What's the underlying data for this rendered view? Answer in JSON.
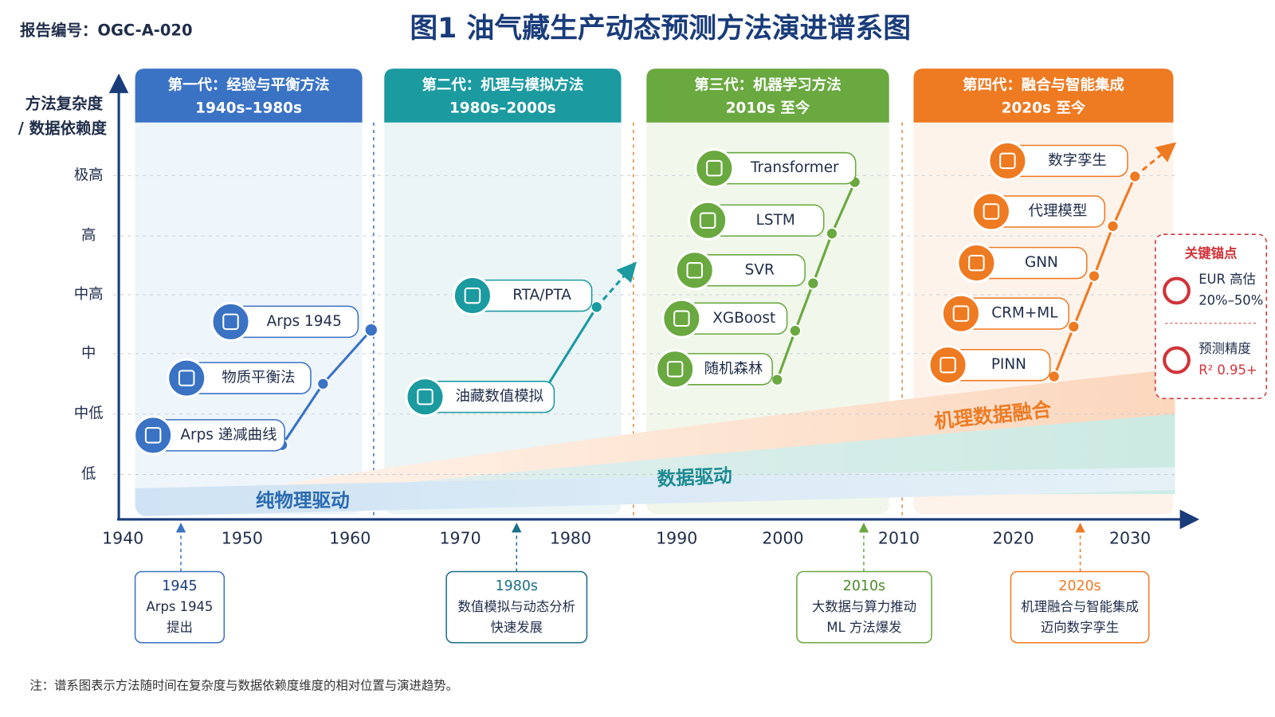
{
  "header": {
    "report_id": "报告编号：OGC-A-020",
    "title": "图1  油气藏生产动态预测方法演进谱系图"
  },
  "y_axis": {
    "title": [
      "方法复杂度",
      "/ 数据依赖度"
    ],
    "levels": [
      "极高",
      "高",
      "中高",
      "中",
      "中低",
      "低"
    ]
  },
  "x_axis": {
    "ticks": [
      "1940",
      "1950",
      "1960",
      "1970",
      "1980",
      "1990",
      "2000",
      "2010",
      "2020",
      "2030"
    ]
  },
  "generations": [
    {
      "title": "第一代：经验与平衡方法",
      "period": "1940s–1980s",
      "methods": [
        "Arps 递减曲线",
        "物质平衡法",
        "Arps 1945"
      ]
    },
    {
      "title": "第二代：机理与模拟方法",
      "period": "1980s–2000s",
      "methods": [
        "油藏数值模拟",
        "RTA/PTA"
      ]
    },
    {
      "title": "第三代：机器学习方法",
      "period": "2010s 至今",
      "methods": [
        "随机森林",
        "XGBoost",
        "SVR",
        "LSTM",
        "Transformer"
      ]
    },
    {
      "title": "第四代：融合与智能集成",
      "period": "2020s 至今",
      "methods": [
        "PINN",
        "CRM+ML",
        "GNN",
        "代理模型",
        "数字孪生"
      ]
    }
  ],
  "bands": [
    "纯物理驱动",
    "数据驱动",
    "机理数据融合"
  ],
  "key_anchors": {
    "title": "关键锚点",
    "items": [
      {
        "label": "EUR 高估",
        "value": "20%–50%"
      },
      {
        "label": "预测精度",
        "value": "R² 0.95+"
      }
    ]
  },
  "milestones": [
    {
      "year": "1945",
      "lines": [
        "Arps 1945",
        "提出"
      ]
    },
    {
      "year": "1980s",
      "lines": [
        "数值模拟与动态分析",
        "快速发展"
      ]
    },
    {
      "year": "2010s",
      "lines": [
        "大数据与算力推动",
        "ML 方法爆发"
      ]
    },
    {
      "year": "2020s",
      "lines": [
        "机理融合与智能集成",
        "迈向数字孪生"
      ]
    }
  ],
  "note": "注：谱系图表示方法随时间在复杂度与数据依赖度维度的相对位置与演进趋势。"
}
